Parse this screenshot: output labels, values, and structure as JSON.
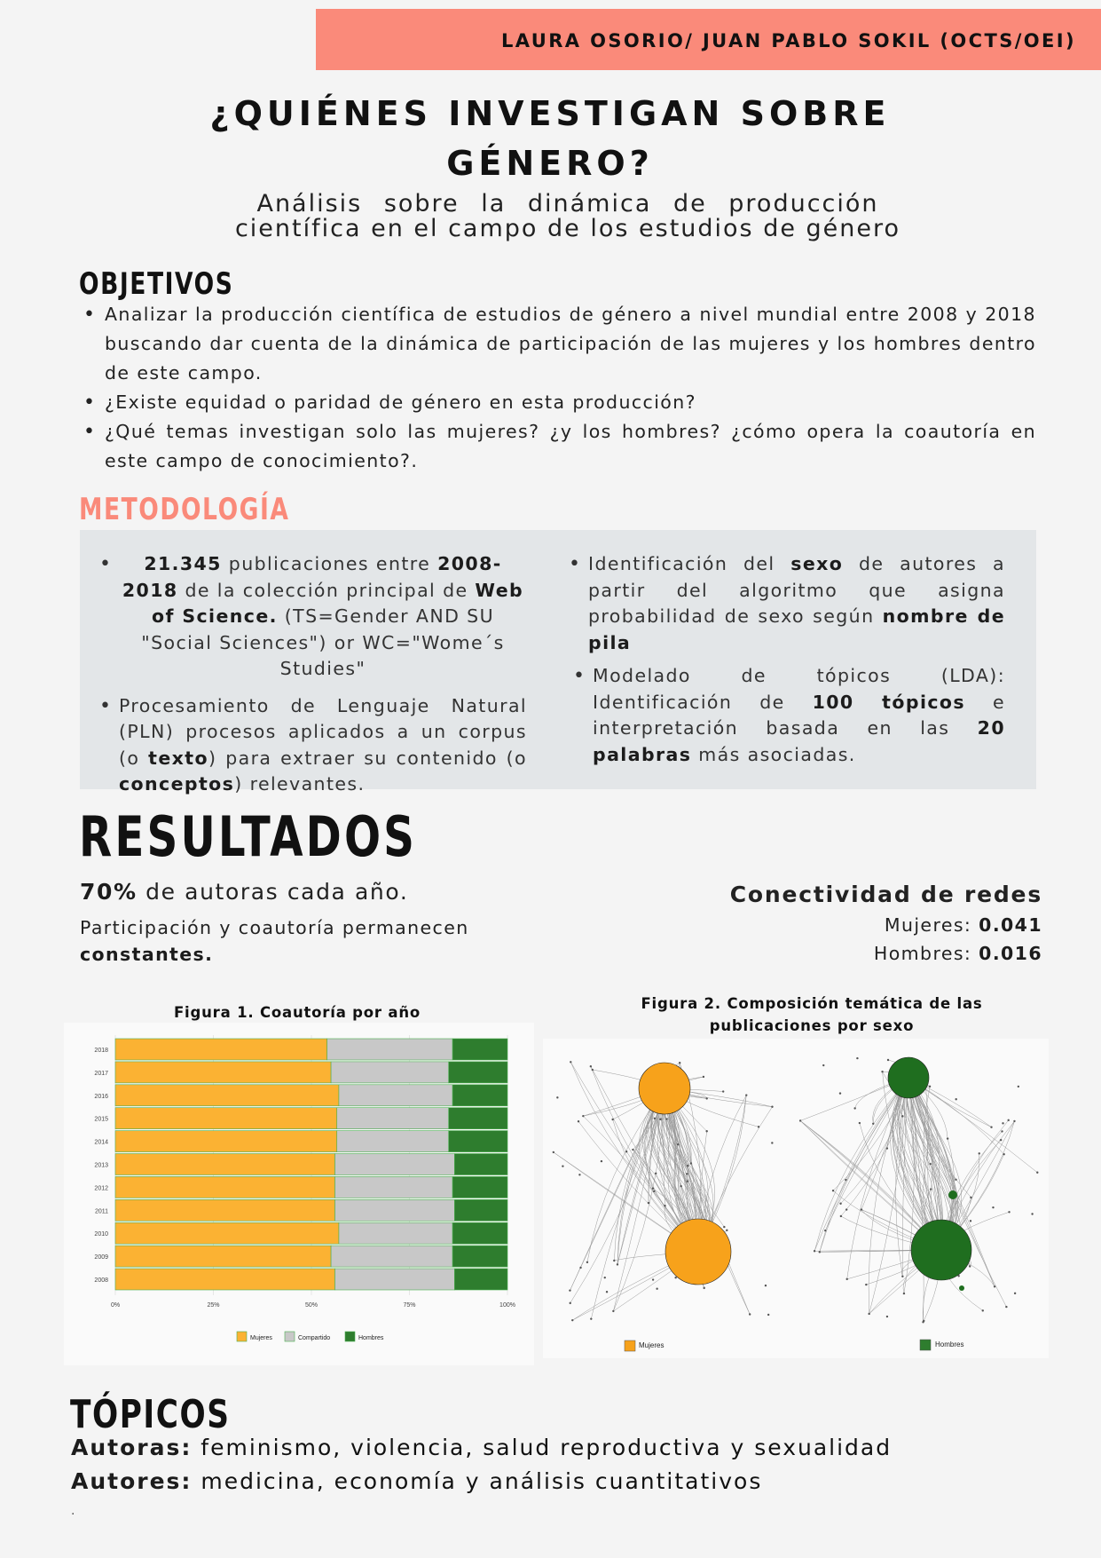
{
  "header": {
    "authors": "LAURA OSORIO/ JUAN PABLO SOKIL (OCTS/OEI)"
  },
  "title": {
    "line1": "¿QUIÉNES INVESTIGAN SOBRE",
    "line2": "GÉNERO?"
  },
  "subtitle": {
    "line1": "Análisis sobre la dinámica de producción",
    "line2": "científica en el campo de los estudios de género"
  },
  "objetivos": {
    "heading": "OBJETIVOS",
    "items": [
      "Analizar la producción científica de estudios de género a nivel mundial entre 2008 y 2018 buscando dar cuenta de la dinámica de participación de las mujeres y los hombres dentro de este campo.",
      "¿Existe equidad o paridad de género en esta producción?",
      "¿Qué temas investigan solo las mujeres? ¿y los hombres? ¿cómo opera la coautoría en este campo de conocimiento?."
    ]
  },
  "metodologia": {
    "heading": "METODOLOGÍA",
    "item1": {
      "b1": "21.345",
      "t1": " publicaciones entre ",
      "b2": "2008-2018",
      "t2": " de la colección principal de ",
      "b3": "Web of Science.",
      "t3": " (TS=Gender AND SU \"Social Sciences\") or WC=\"Wome´s Studies\""
    },
    "item2": {
      "t1": "Procesamiento de Lenguaje Natural (PLN) procesos aplicados a un corpus (o ",
      "b1": "texto",
      "t2": ") para extraer su contenido (o ",
      "b2": "conceptos",
      "t3": ") relevantes."
    },
    "item3": {
      "t1": "Identificación del ",
      "b1": "sexo",
      "t2": " de autores a partir del algoritmo que asigna probabilidad de sexo según ",
      "b2": "nombre de pila"
    },
    "item4": {
      "t1": "Modelado de tópicos (LDA): Identificación de ",
      "b1": "100 tópicos",
      "t2": " e interpretación basada en las ",
      "b2": "20 palabras",
      "t3": " más asociadas."
    }
  },
  "resultados": {
    "heading": "RESULTADOS",
    "stat1_bold": "70%",
    "stat1_text": " de autoras cada año.",
    "stat2_text": "Participación y coautoría permanecen",
    "stat2_bold": "constantes.",
    "conect_heading": "Conectividad de redes",
    "mujeres_label": "Mujeres: ",
    "mujeres_value": "0.041",
    "hombres_label": "Hombres: ",
    "hombres_value": "0.016"
  },
  "figure1": {
    "title": "Figura 1. Coautoría por año",
    "legend": [
      "Mujeres",
      "Compartido",
      "Hombres"
    ]
  },
  "figure2": {
    "title_line1": "Figura 2. Composición temática de las",
    "title_line2": "publicaciones por sexo",
    "legend_left": "Mujeres",
    "legend_right": "Hombres"
  },
  "topicos": {
    "heading": "TÓPICOS",
    "autoras_label": "Autoras:",
    "autoras_text": " feminismo, violencia, salud reproductiva y sexualidad",
    "autores_label": "Autores:",
    "autores_text": " medicina, economía y análisis cuantitativos",
    "footer_mark": "."
  },
  "colors": {
    "banner": "#fa8a7a",
    "mujeres": "#fbb233",
    "compartido": "#c8c8c8",
    "hombres": "#2e7d2e",
    "method_bg": "#e3e6e8"
  },
  "chart_data": {
    "type": "bar",
    "orientation": "horizontal",
    "stacked": true,
    "categories": [
      "2018",
      "2017",
      "2016",
      "2015",
      "2014",
      "2013",
      "2012",
      "2011",
      "2010",
      "2009",
      "2008"
    ],
    "series": [
      {
        "name": "Mujeres",
        "values": [
          54,
          55,
          57,
          56.5,
          56.5,
          56,
          56,
          56,
          57,
          55,
          56
        ]
      },
      {
        "name": "Compartido",
        "values": [
          32,
          30,
          29,
          28.5,
          28.5,
          30.5,
          30,
          30.5,
          29,
          31,
          30.5
        ]
      },
      {
        "name": "Hombres",
        "values": [
          14,
          15,
          14,
          15,
          15,
          13.5,
          14,
          13.5,
          14,
          14,
          13.5
        ]
      }
    ],
    "x_ticks": [
      "0%",
      "25%",
      "50%",
      "75%",
      "100%"
    ],
    "xlim": [
      0,
      100
    ],
    "legend": "bottom",
    "grid": true
  }
}
